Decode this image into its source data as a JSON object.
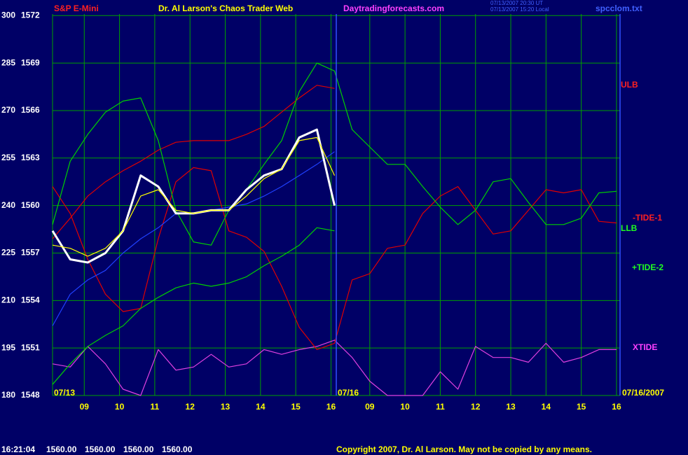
{
  "chart_data": {
    "type": "line",
    "header": {
      "symbol": "S&P E-Mini",
      "title": "Dr. Al Larson's Chaos Trader Web",
      "site": "Daytradingforecasts.com",
      "stamp": [
        "07/13/2007 20:30 UT",
        "07/13/2007 15:20 Local"
      ],
      "file": "spcclom.txt"
    },
    "date_labels": [
      "07/13",
      "07/16",
      "07/16/2007"
    ],
    "status": {
      "time": "16:21:04",
      "prices": [
        "1560.00",
        "1560.00",
        "1560.00",
        "1560.00"
      ]
    },
    "copyright": "Copyright 2007, Dr. Al Larson. May not be copied by any means.",
    "x": [
      8.1,
      8.6,
      9.1,
      9.6,
      10.1,
      10.6,
      11.1,
      11.6,
      12.1,
      12.6,
      13.1,
      13.6,
      14.1,
      14.6,
      15.1,
      15.6,
      16.1,
      16.6,
      17.1,
      17.6,
      18.1,
      18.6,
      19.1,
      19.6,
      20.1,
      20.6,
      21.1,
      21.6,
      22.1,
      22.6,
      23.1,
      23.6,
      24.1
    ],
    "xlim": [
      8.1,
      24.2
    ],
    "xticks": [
      {
        "value": 9,
        "label": "09"
      },
      10,
      11,
      12,
      13,
      14,
      15,
      16,
      {
        "value": 17.1,
        "label": "09"
      },
      {
        "value": 18.1,
        "label": "10"
      },
      {
        "value": 19.1,
        "label": "11"
      },
      {
        "value": 20.1,
        "label": "12"
      },
      {
        "value": 21.1,
        "label": "13"
      },
      {
        "value": 22.1,
        "label": "14"
      },
      {
        "value": 23.1,
        "label": "15"
      },
      {
        "value": 24.1,
        "label": "16"
      }
    ],
    "ylim": [
      180,
      300.5
    ],
    "yticks": [
      180,
      195,
      210,
      225,
      240,
      255,
      270,
      285,
      300
    ],
    "y2lim": [
      1548,
      1572.1
    ],
    "y2ticks": [
      1548,
      1551,
      1554,
      1557,
      1560,
      1563,
      1566,
      1569,
      1572
    ],
    "grid": true,
    "series": [
      {
        "name": "XTIDE",
        "color": "#e040e0",
        "values": [
          190,
          189,
          195.5,
          190,
          182,
          180,
          194.5,
          188,
          189,
          193,
          189,
          190,
          194.5,
          193,
          194.5,
          195.5,
          197.5,
          192,
          184.5,
          180,
          180,
          180,
          187.5,
          182,
          195.5,
          192,
          192,
          190.5,
          196.5,
          190.5,
          192,
          194.5,
          194.5
        ]
      },
      {
        "name": "ULB",
        "color": "#e00000",
        "values": [
          229.5,
          236,
          243,
          247.5,
          251,
          254,
          257.5,
          260,
          260.5,
          260.5,
          260.5,
          262.5,
          265,
          269.5,
          274,
          278,
          277,
          null,
          null,
          null,
          null,
          null,
          null,
          null,
          null,
          null,
          null,
          null,
          null,
          null,
          null,
          null,
          null
        ]
      },
      {
        "name": "-TIDE-1",
        "color": "#e00000",
        "values": [
          246,
          237.5,
          223,
          212,
          206.5,
          207.5,
          229.5,
          247.5,
          252,
          251,
          232,
          230,
          225.5,
          214.5,
          201.5,
          194.5,
          196.5,
          216.5,
          218.5,
          226.5,
          227.5,
          237.5,
          243,
          246,
          238.5,
          231,
          232,
          238.5,
          245,
          244,
          245,
          235,
          234.5
        ]
      },
      {
        "name": "LLB",
        "color": "#00d000",
        "values": [
          183.5,
          190,
          195.5,
          199,
          202,
          207.5,
          211,
          214,
          215.5,
          214.5,
          215.5,
          217.5,
          221,
          224,
          227.5,
          233,
          232,
          null,
          null,
          null,
          null,
          null,
          null,
          null,
          null,
          null,
          null,
          null,
          null,
          null,
          null,
          null,
          null
        ]
      },
      {
        "name": "+TIDE-2",
        "color": "#00d000",
        "values": [
          234,
          254,
          262.5,
          269.5,
          273,
          274,
          260.5,
          238.5,
          228.5,
          227.5,
          238.5,
          245,
          253,
          260.5,
          276,
          285,
          282.5,
          264,
          258.5,
          253,
          253,
          246,
          239.5,
          234,
          238.5,
          247.5,
          248.5,
          241,
          234,
          234,
          236,
          244,
          244.5
        ]
      },
      {
        "color": "#2040ff",
        "values": [
          202,
          212,
          216.5,
          219.5,
          225,
          229.5,
          233,
          237.5,
          237.5,
          238.5,
          239.5,
          240.5,
          243,
          246,
          249.5,
          253,
          257,
          null,
          null,
          null,
          null,
          null,
          null,
          null,
          null,
          null,
          null,
          null,
          null,
          null,
          null,
          null,
          null
        ]
      },
      {
        "color": "#ffffff",
        "values": [
          232,
          223,
          222,
          225,
          232,
          249.5,
          246,
          237.5,
          237.5,
          238.5,
          238.5,
          245,
          249.5,
          251.5,
          261.5,
          264,
          240,
          null,
          null,
          null,
          null,
          null,
          null,
          null,
          null,
          null,
          null,
          null,
          null,
          null,
          null,
          null,
          null
        ]
      },
      {
        "color": "#ffff00",
        "values": [
          227.5,
          226.5,
          224,
          226.5,
          232,
          243,
          245,
          238.5,
          237.5,
          238.5,
          238.5,
          243,
          248.5,
          251.5,
          260.5,
          261.5,
          249.5,
          null,
          null,
          null,
          null,
          null,
          null,
          null,
          null,
          null,
          null,
          null,
          null,
          null,
          null,
          null,
          null
        ]
      }
    ]
  }
}
